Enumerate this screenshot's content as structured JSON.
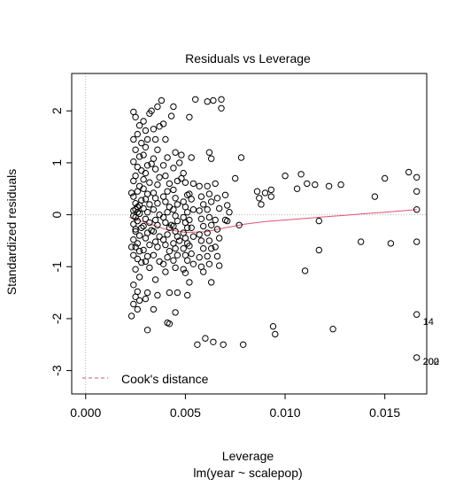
{
  "chart_data": {
    "type": "scatter",
    "title": "Residuals vs Leverage",
    "xlabel": "Leverage",
    "sublabel": "lm(year ~ scalepop)",
    "ylabel": "Standardized residuals",
    "xlim": [
      -0.0007,
      0.0171
    ],
    "ylim": [
      -3.45,
      2.72
    ],
    "x_ticks": [
      0,
      0.005,
      0.01,
      0.015
    ],
    "x_tick_labels": [
      "0.000",
      "0.005",
      "0.010",
      "0.015"
    ],
    "y_ticks": [
      -3,
      -2,
      -1,
      0,
      1,
      2
    ],
    "y_tick_labels": [
      "-3",
      "-2",
      "-1",
      "0",
      "1",
      "2"
    ],
    "grid": false,
    "reference_lines": {
      "x": 0,
      "y": 0,
      "style": "dotted",
      "color": "#b3b3b3"
    },
    "legend": {
      "placement": "bottom-left",
      "entries": [
        {
          "label": "Cook's distance",
          "style": "dashed",
          "color": "#df536b"
        }
      ]
    },
    "smooth": {
      "color": "#df536b",
      "x": [
        0.0022,
        0.003,
        0.004,
        0.005,
        0.006,
        0.007,
        0.008,
        0.009,
        0.01,
        0.011,
        0.012,
        0.013,
        0.014,
        0.015,
        0.016,
        0.0166
      ],
      "y": [
        -0.05,
        -0.15,
        -0.28,
        -0.34,
        -0.33,
        -0.25,
        -0.18,
        -0.13,
        -0.1,
        -0.07,
        -0.04,
        -0.01,
        0.02,
        0.05,
        0.08,
        0.1
      ]
    },
    "annotations": [
      {
        "text": "14",
        "x": 0.0166,
        "y": -2.05
      },
      {
        "text": "202",
        "x": 0.0166,
        "y": -2.82
      },
      {
        "text": "200",
        "x": 0.0166,
        "y": -2.82
      }
    ],
    "points": [
      [
        0.0024,
        1.98
      ],
      [
        0.0025,
        1.88
      ],
      [
        0.0027,
        1.72
      ],
      [
        0.0026,
        1.55
      ],
      [
        0.0024,
        1.45
      ],
      [
        0.0028,
        1.38
      ],
      [
        0.0025,
        1.25
      ],
      [
        0.0027,
        1.12
      ],
      [
        0.0024,
        1.02
      ],
      [
        0.0026,
        0.92
      ],
      [
        0.0028,
        0.85
      ],
      [
        0.0025,
        0.75
      ],
      [
        0.0024,
        0.65
      ],
      [
        0.0027,
        0.55
      ],
      [
        0.0026,
        0.45
      ],
      [
        0.0024,
        0.35
      ],
      [
        0.0028,
        0.28
      ],
      [
        0.0025,
        0.22
      ],
      [
        0.0026,
        0.15
      ],
      [
        0.0024,
        0.08
      ],
      [
        0.0027,
        0.02
      ],
      [
        0.0025,
        -0.05
      ],
      [
        0.0026,
        -0.12
      ],
      [
        0.0024,
        -0.18
      ],
      [
        0.0028,
        -0.25
      ],
      [
        0.0025,
        -0.32
      ],
      [
        0.0027,
        -0.4
      ],
      [
        0.0024,
        -0.48
      ],
      [
        0.0026,
        -0.55
      ],
      [
        0.0025,
        -0.62
      ],
      [
        0.0027,
        -0.7
      ],
      [
        0.0024,
        -0.78
      ],
      [
        0.0026,
        -0.85
      ],
      [
        0.0028,
        -0.92
      ],
      [
        0.0025,
        -1.05
      ],
      [
        0.0027,
        -1.2
      ],
      [
        0.0024,
        -1.35
      ],
      [
        0.0026,
        -1.48
      ],
      [
        0.0025,
        -1.58
      ],
      [
        0.0027,
        -1.65
      ],
      [
        0.0024,
        -1.72
      ],
      [
        0.0026,
        -1.82
      ],
      [
        0.0023,
        -1.95
      ],
      [
        0.0025,
        0.1
      ],
      [
        0.0026,
        0.05
      ],
      [
        0.0024,
        -0.02
      ],
      [
        0.0027,
        0.18
      ],
      [
        0.0025,
        -0.28
      ],
      [
        0.0023,
        0.42
      ],
      [
        0.0023,
        -0.62
      ],
      [
        0.0029,
        1.8
      ],
      [
        0.003,
        1.62
      ],
      [
        0.0031,
        1.45
      ],
      [
        0.003,
        1.3
      ],
      [
        0.0029,
        1.15
      ],
      [
        0.0031,
        0.95
      ],
      [
        0.003,
        0.8
      ],
      [
        0.0032,
        0.62
      ],
      [
        0.0029,
        0.5
      ],
      [
        0.0031,
        0.4
      ],
      [
        0.003,
        0.3
      ],
      [
        0.0032,
        0.2
      ],
      [
        0.0029,
        0.12
      ],
      [
        0.0031,
        0.05
      ],
      [
        0.003,
        -0.08
      ],
      [
        0.0032,
        -0.15
      ],
      [
        0.0029,
        -0.22
      ],
      [
        0.0031,
        -0.35
      ],
      [
        0.003,
        -0.45
      ],
      [
        0.0032,
        -0.58
      ],
      [
        0.0029,
        -0.68
      ],
      [
        0.0031,
        -0.8
      ],
      [
        0.003,
        -0.9
      ],
      [
        0.0032,
        -1.02
      ],
      [
        0.003,
        -1.62
      ],
      [
        0.0032,
        1.95
      ],
      [
        0.0031,
        -1.5
      ],
      [
        0.0029,
        0.68
      ],
      [
        0.0033,
        0.98
      ],
      [
        0.0033,
        -0.3
      ],
      [
        0.0034,
        1.65
      ],
      [
        0.0035,
        1.45
      ],
      [
        0.0036,
        1.25
      ],
      [
        0.0034,
        1.08
      ],
      [
        0.0035,
        0.88
      ],
      [
        0.0037,
        0.72
      ],
      [
        0.0036,
        0.58
      ],
      [
        0.0034,
        0.42
      ],
      [
        0.0035,
        0.32
      ],
      [
        0.0036,
        0.22
      ],
      [
        0.0034,
        0.1
      ],
      [
        0.0037,
        0.0
      ],
      [
        0.0035,
        -0.1
      ],
      [
        0.0036,
        -0.2
      ],
      [
        0.0034,
        -0.32
      ],
      [
        0.0037,
        -0.42
      ],
      [
        0.0035,
        -0.52
      ],
      [
        0.0036,
        -0.62
      ],
      [
        0.0034,
        -0.78
      ],
      [
        0.0037,
        -0.9
      ],
      [
        0.0035,
        -1.25
      ],
      [
        0.0036,
        -1.55
      ],
      [
        0.0034,
        -1.82
      ],
      [
        0.0033,
        2.0
      ],
      [
        0.0036,
        2.08
      ],
      [
        0.0031,
        -2.22
      ],
      [
        0.0037,
        1.7
      ],
      [
        0.0038,
        2.2
      ],
      [
        0.0039,
        1.75
      ],
      [
        0.004,
        1.45
      ],
      [
        0.0041,
        1.1
      ],
      [
        0.0039,
        0.95
      ],
      [
        0.004,
        0.75
      ],
      [
        0.0042,
        0.6
      ],
      [
        0.0041,
        0.45
      ],
      [
        0.0039,
        0.35
      ],
      [
        0.004,
        0.25
      ],
      [
        0.0042,
        0.15
      ],
      [
        0.0041,
        0.05
      ],
      [
        0.0039,
        -0.05
      ],
      [
        0.004,
        -0.15
      ],
      [
        0.0042,
        -0.25
      ],
      [
        0.0041,
        -0.38
      ],
      [
        0.0039,
        -0.48
      ],
      [
        0.004,
        -0.58
      ],
      [
        0.0042,
        -0.7
      ],
      [
        0.0041,
        -0.82
      ],
      [
        0.0039,
        -0.95
      ],
      [
        0.004,
        -1.1
      ],
      [
        0.0042,
        -1.5
      ],
      [
        0.0041,
        -2.08
      ],
      [
        0.0042,
        -2.1
      ],
      [
        0.0043,
        1.9
      ],
      [
        0.0043,
        -0.2
      ],
      [
        0.0044,
        0.9
      ],
      [
        0.0044,
        2.08
      ],
      [
        0.0045,
        1.2
      ],
      [
        0.0046,
        0.65
      ],
      [
        0.0044,
        0.48
      ],
      [
        0.0045,
        0.32
      ],
      [
        0.0046,
        0.2
      ],
      [
        0.0044,
        0.1
      ],
      [
        0.0045,
        -0.02
      ],
      [
        0.0046,
        -0.12
      ],
      [
        0.0044,
        -0.22
      ],
      [
        0.0045,
        -0.32
      ],
      [
        0.0046,
        -0.42
      ],
      [
        0.0044,
        -0.55
      ],
      [
        0.0045,
        -0.65
      ],
      [
        0.0046,
        -0.78
      ],
      [
        0.0044,
        -0.88
      ],
      [
        0.0045,
        -1.02
      ],
      [
        0.0046,
        -1.5
      ],
      [
        0.0045,
        -1.88
      ],
      [
        0.0047,
        1.0
      ],
      [
        0.0048,
        1.15
      ],
      [
        0.0047,
        -0.5
      ],
      [
        0.0048,
        0.7
      ],
      [
        0.0049,
        0.8
      ],
      [
        0.005,
        0.62
      ],
      [
        0.0051,
        0.38
      ],
      [
        0.0049,
        0.25
      ],
      [
        0.005,
        0.15
      ],
      [
        0.0051,
        0.05
      ],
      [
        0.0049,
        -0.05
      ],
      [
        0.005,
        -0.15
      ],
      [
        0.0051,
        -0.25
      ],
      [
        0.0049,
        -0.35
      ],
      [
        0.005,
        -0.45
      ],
      [
        0.0051,
        -0.55
      ],
      [
        0.0049,
        -0.65
      ],
      [
        0.005,
        -0.78
      ],
      [
        0.0051,
        -0.88
      ],
      [
        0.0049,
        -1.05
      ],
      [
        0.005,
        -1.12
      ],
      [
        0.0051,
        -1.55
      ],
      [
        0.0052,
        1.88
      ],
      [
        0.0053,
        1.1
      ],
      [
        0.0054,
        0.6
      ],
      [
        0.0052,
        0.4
      ],
      [
        0.0053,
        0.3
      ],
      [
        0.0054,
        0.1
      ],
      [
        0.0052,
        -0.1
      ],
      [
        0.0053,
        -0.25
      ],
      [
        0.0054,
        -0.42
      ],
      [
        0.0052,
        -0.6
      ],
      [
        0.0053,
        -0.75
      ],
      [
        0.0054,
        -0.95
      ],
      [
        0.0052,
        -1.3
      ],
      [
        0.0055,
        2.22
      ],
      [
        0.0056,
        -2.5
      ],
      [
        0.0057,
        0.55
      ],
      [
        0.0058,
        0.35
      ],
      [
        0.0059,
        0.2
      ],
      [
        0.0057,
        0.08
      ],
      [
        0.0058,
        -0.08
      ],
      [
        0.0059,
        -0.22
      ],
      [
        0.0057,
        -0.38
      ],
      [
        0.0058,
        -0.5
      ],
      [
        0.0059,
        -0.65
      ],
      [
        0.0057,
        -0.82
      ],
      [
        0.0058,
        -1.0
      ],
      [
        0.0059,
        -1.1
      ],
      [
        0.006,
        -2.38
      ],
      [
        0.0061,
        2.18
      ],
      [
        0.0062,
        1.2
      ],
      [
        0.0063,
        1.08
      ],
      [
        0.0061,
        0.55
      ],
      [
        0.0062,
        0.4
      ],
      [
        0.0063,
        0.25
      ],
      [
        0.0061,
        0.1
      ],
      [
        0.0062,
        -0.05
      ],
      [
        0.0063,
        -0.2
      ],
      [
        0.0061,
        -0.35
      ],
      [
        0.0062,
        -0.5
      ],
      [
        0.0063,
        -0.65
      ],
      [
        0.0061,
        -0.8
      ],
      [
        0.0062,
        -0.95
      ],
      [
        0.0063,
        -1.3
      ],
      [
        0.0064,
        2.2
      ],
      [
        0.0064,
        -2.45
      ],
      [
        0.0065,
        0.6
      ],
      [
        0.0066,
        0.32
      ],
      [
        0.0067,
        0.12
      ],
      [
        0.0065,
        -0.1
      ],
      [
        0.0066,
        -0.28
      ],
      [
        0.0067,
        -0.45
      ],
      [
        0.0065,
        -0.62
      ],
      [
        0.0066,
        -0.8
      ],
      [
        0.0067,
        -0.98
      ],
      [
        0.0068,
        2.22
      ],
      [
        0.0068,
        2.05
      ],
      [
        0.0069,
        -2.5
      ],
      [
        0.007,
        0.38
      ],
      [
        0.0071,
        0.18
      ],
      [
        0.0072,
        0.05
      ],
      [
        0.007,
        -0.1
      ],
      [
        0.0071,
        -0.12
      ],
      [
        0.0075,
        0.7
      ],
      [
        0.0077,
        -0.2
      ],
      [
        0.0078,
        1.1
      ],
      [
        0.0079,
        -2.5
      ],
      [
        0.0086,
        0.45
      ],
      [
        0.0087,
        0.32
      ],
      [
        0.0088,
        0.2
      ],
      [
        0.009,
        0.42
      ],
      [
        0.0093,
        0.35
      ],
      [
        0.0093,
        0.48
      ],
      [
        0.0094,
        -2.15
      ],
      [
        0.0095,
        -2.3
      ],
      [
        0.01,
        0.75
      ],
      [
        0.0106,
        0.5
      ],
      [
        0.0108,
        0.78
      ],
      [
        0.011,
        -1.08
      ],
      [
        0.0111,
        0.6
      ],
      [
        0.0115,
        0.58
      ],
      [
        0.0117,
        -0.12
      ],
      [
        0.0117,
        -0.68
      ],
      [
        0.0122,
        0.55
      ],
      [
        0.0124,
        -2.2
      ],
      [
        0.0128,
        0.58
      ],
      [
        0.0138,
        -0.52
      ],
      [
        0.0145,
        0.35
      ],
      [
        0.015,
        0.7
      ],
      [
        0.0153,
        -0.55
      ],
      [
        0.0162,
        0.82
      ],
      [
        0.0166,
        0.72
      ],
      [
        0.0166,
        0.45
      ],
      [
        0.0166,
        0.1
      ],
      [
        0.0166,
        -0.52
      ],
      [
        0.0166,
        -1.92
      ],
      [
        0.0166,
        -2.75
      ]
    ]
  }
}
